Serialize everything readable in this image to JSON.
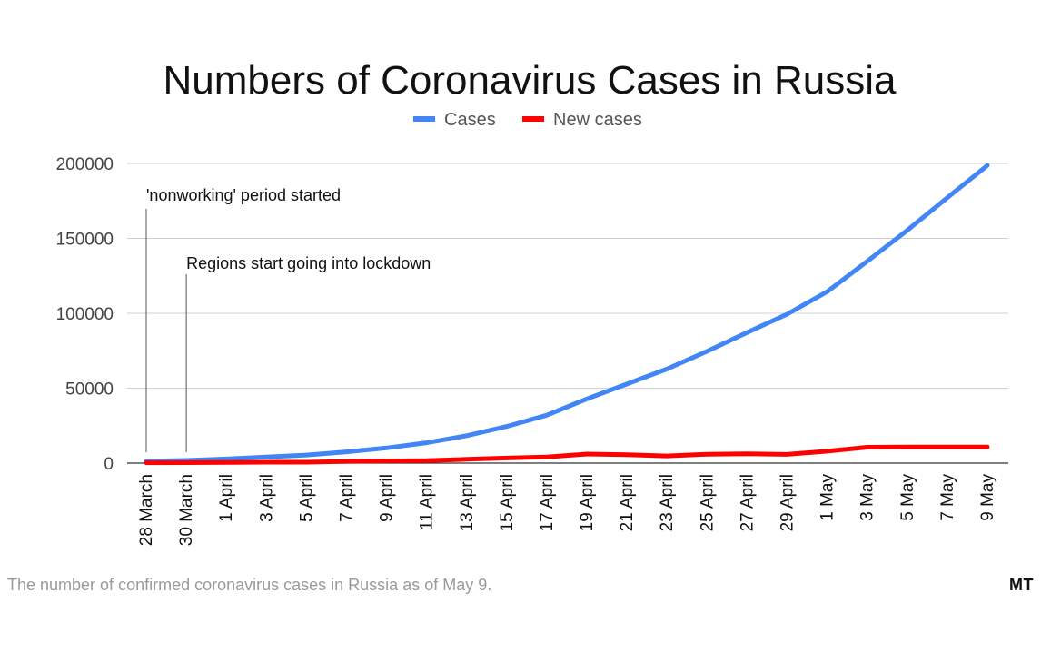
{
  "chart_data": {
    "type": "line",
    "title": "Numbers of Coronavirus Cases in Russia",
    "xlabel": "",
    "ylabel": "",
    "ylim": [
      0,
      200000
    ],
    "yticks": [
      0,
      50000,
      100000,
      150000,
      200000
    ],
    "grid": true,
    "legend_position": "top-center",
    "categories": [
      "28 March",
      "30 March",
      "1 April",
      "3 April",
      "5 April",
      "7 April",
      "9 April",
      "11 April",
      "13 April",
      "15 April",
      "17 April",
      "19 April",
      "21 April",
      "23 April",
      "25 April",
      "27 April",
      "29 April",
      "1 May",
      "3 May",
      "5 May",
      "7 May",
      "9 May"
    ],
    "series": [
      {
        "name": "Cases",
        "color": "#4285f4",
        "values": [
          1264,
          1836,
          2777,
          4149,
          5389,
          7497,
          10131,
          13584,
          18328,
          24490,
          32008,
          42853,
          52763,
          62773,
          74588,
          87147,
          99399,
          114431,
          134686,
          155370,
          177160,
          198676
        ]
      },
      {
        "name": "New cases",
        "color": "#ff0000",
        "values": [
          228,
          302,
          440,
          601,
          582,
          1154,
          1459,
          1667,
          2558,
          3388,
          4070,
          6060,
          5642,
          4774,
          5966,
          6198,
          5841,
          7933,
          10633,
          10817,
          10699,
          10817
        ]
      }
    ],
    "annotations": [
      {
        "text": "'nonworking' period started",
        "category": "28 March"
      },
      {
        "text": "Regions start going into lockdown",
        "category": "30 March"
      }
    ]
  },
  "caption": "The number of confirmed coronavirus cases in Russia as of May 9.",
  "brand": "MT"
}
